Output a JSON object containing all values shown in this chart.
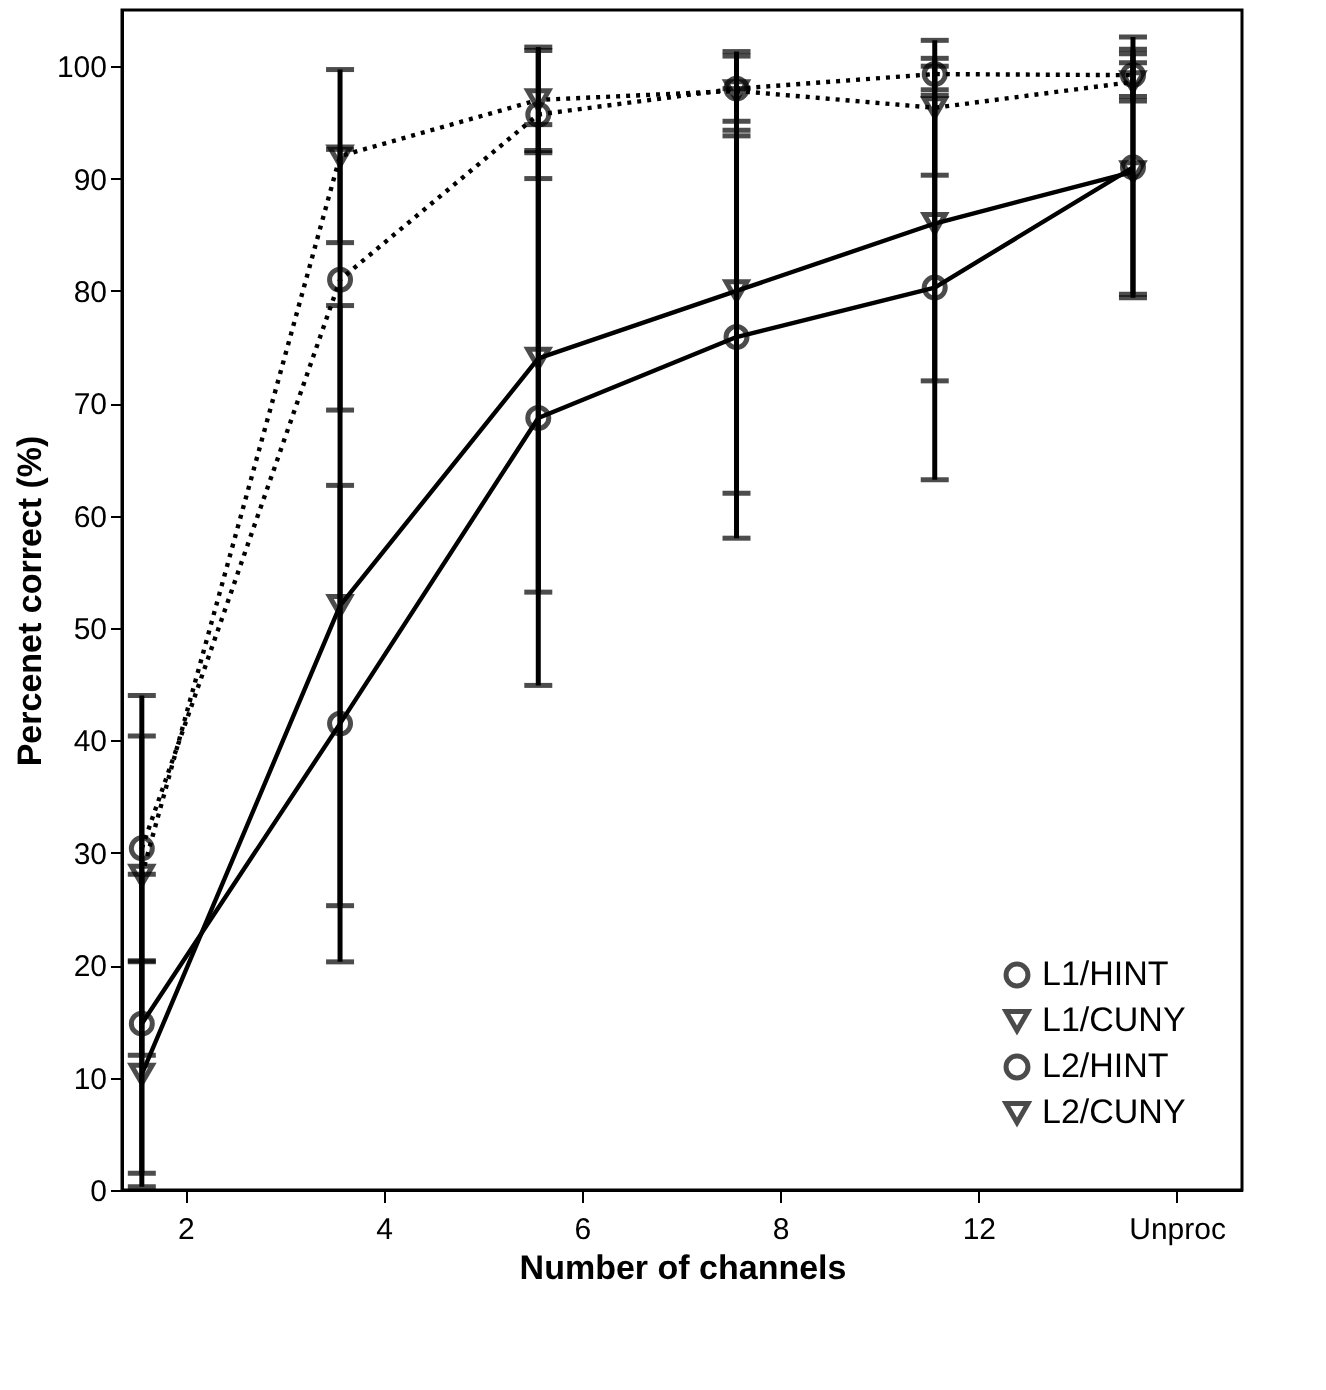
{
  "chart_data": {
    "type": "line",
    "xlabel": "Number of channels",
    "ylabel": "Percenet correct (%)",
    "categories": [
      "2",
      "4",
      "6",
      "8",
      "12",
      "Unproc"
    ],
    "ylim": [
      0,
      105
    ],
    "yticks": [
      0,
      10,
      20,
      30,
      40,
      50,
      60,
      70,
      80,
      90,
      100
    ],
    "grid": false,
    "legend": "bottom right",
    "series": [
      {
        "name": "L1/HINT",
        "color": "#000000",
        "marker": "circle",
        "line_style": "dotted",
        "values": [
          30.4,
          81,
          95.7,
          98,
          99.3,
          99.2
        ],
        "errors": [
          10.0,
          11.6,
          5.7,
          2.9,
          1.4,
          1.9
        ]
      },
      {
        "name": "L1/CUNY",
        "color": "#000000",
        "marker": "triangle",
        "line_style": "dotted",
        "values": [
          28,
          92,
          97,
          97.8,
          96.3,
          98.6
        ],
        "errors": [
          16,
          7.7,
          4.7,
          3.5,
          6,
          1.7
        ]
      },
      {
        "name": "L2/HINT",
        "color": "#000000",
        "marker": "circle",
        "line_style": "solid",
        "values": [
          14.8,
          41.5,
          68.7,
          75.9,
          80.3,
          91
        ],
        "errors": [
          13.3,
          21.2,
          23.8,
          17.9,
          17.1,
          11.6
        ]
      },
      {
        "name": "L2/CUNY",
        "color": "#000000",
        "marker": "triangle",
        "line_style": "solid",
        "values": [
          10.3,
          52,
          74,
          80,
          86,
          90.6
        ],
        "errors": [
          10,
          26.7,
          20.8,
          18,
          14,
          10.9
        ]
      }
    ]
  }
}
